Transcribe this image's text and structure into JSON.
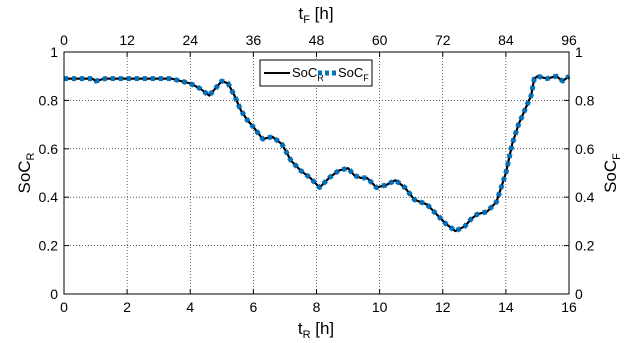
{
  "chart_data": {
    "type": "line",
    "xlabel_bottom": {
      "main": "t",
      "sub": "R",
      "unit": " [h]"
    },
    "xlabel_top": {
      "main": "t",
      "sub": "F",
      "unit": " [h]"
    },
    "ylabel_left": {
      "main": "SoC",
      "sub": "R"
    },
    "ylabel_right": {
      "main": "SoC",
      "sub": "F"
    },
    "xlim_bottom": [
      0,
      16
    ],
    "xticks_bottom": [
      0,
      2,
      4,
      6,
      8,
      10,
      12,
      14,
      16
    ],
    "xlim_top": [
      0,
      96
    ],
    "xticks_top": [
      0,
      12,
      24,
      36,
      48,
      60,
      72,
      84,
      96
    ],
    "ylim": [
      0,
      1
    ],
    "yticks": [
      0,
      0.2,
      0.4,
      0.6,
      0.8,
      1
    ],
    "ytick_labels": [
      "0",
      "0.2",
      "0.4",
      "0.6",
      "0.8",
      "1"
    ],
    "grid": true,
    "legend": {
      "placement": "top-center",
      "entries": [
        {
          "main": "SoC",
          "sub": "R"
        },
        {
          "main": "SoC",
          "sub": "F"
        }
      ]
    },
    "colors": {
      "soc_r": "#000000",
      "soc_f": "#0072BD"
    },
    "series": [
      {
        "name": "SoC_R",
        "style": "solid",
        "x_axis": "bottom",
        "x": [
          0,
          0.3,
          0.6,
          0.9,
          1.0,
          1.3,
          1.6,
          1.9,
          2.2,
          2.5,
          2.8,
          3.1,
          3.4,
          3.7,
          4.0,
          4.3,
          4.6,
          4.8,
          5.0,
          5.2,
          5.4,
          5.6,
          5.8,
          6.0,
          6.3,
          6.6,
          6.9,
          7.2,
          7.5,
          7.8,
          8.1,
          8.4,
          8.7,
          9.0,
          9.2,
          9.4,
          9.6,
          9.9,
          10.2,
          10.5,
          10.8,
          11.1,
          11.3,
          11.5,
          11.8,
          12.1,
          12.4,
          12.7,
          12.9,
          13.1,
          13.4,
          13.7,
          14.0,
          14.2,
          14.4,
          14.6,
          14.8,
          14.9,
          15.0,
          15.3,
          15.6,
          15.8,
          16.0
        ],
        "y": [
          0.89,
          0.89,
          0.89,
          0.89,
          0.88,
          0.89,
          0.89,
          0.89,
          0.89,
          0.89,
          0.89,
          0.89,
          0.89,
          0.88,
          0.87,
          0.85,
          0.82,
          0.85,
          0.88,
          0.87,
          0.82,
          0.76,
          0.72,
          0.69,
          0.64,
          0.65,
          0.62,
          0.55,
          0.51,
          0.48,
          0.44,
          0.48,
          0.51,
          0.52,
          0.49,
          0.48,
          0.48,
          0.44,
          0.45,
          0.47,
          0.44,
          0.39,
          0.38,
          0.37,
          0.33,
          0.29,
          0.26,
          0.28,
          0.31,
          0.33,
          0.34,
          0.38,
          0.5,
          0.62,
          0.7,
          0.76,
          0.82,
          0.89,
          0.9,
          0.89,
          0.9,
          0.88,
          0.9
        ]
      },
      {
        "name": "SoC_F",
        "style": "dashed",
        "x_axis": "bottom",
        "x": [
          0,
          0.3,
          0.6,
          0.9,
          1.0,
          1.3,
          1.6,
          1.9,
          2.2,
          2.5,
          2.8,
          3.1,
          3.4,
          3.7,
          4.0,
          4.3,
          4.6,
          4.8,
          5.0,
          5.2,
          5.4,
          5.6,
          5.8,
          6.0,
          6.3,
          6.6,
          6.9,
          7.2,
          7.5,
          7.8,
          8.1,
          8.4,
          8.7,
          9.0,
          9.2,
          9.4,
          9.6,
          9.9,
          10.2,
          10.5,
          10.8,
          11.1,
          11.3,
          11.5,
          11.8,
          12.1,
          12.4,
          12.7,
          12.9,
          13.1,
          13.4,
          13.7,
          14.0,
          14.2,
          14.4,
          14.6,
          14.8,
          14.9,
          15.0,
          15.3,
          15.6,
          15.8,
          16.0
        ],
        "y": [
          0.89,
          0.89,
          0.89,
          0.89,
          0.88,
          0.89,
          0.89,
          0.89,
          0.89,
          0.89,
          0.89,
          0.89,
          0.89,
          0.88,
          0.87,
          0.85,
          0.82,
          0.85,
          0.88,
          0.87,
          0.82,
          0.76,
          0.72,
          0.69,
          0.64,
          0.65,
          0.62,
          0.55,
          0.51,
          0.48,
          0.44,
          0.48,
          0.51,
          0.52,
          0.49,
          0.48,
          0.48,
          0.44,
          0.45,
          0.47,
          0.44,
          0.39,
          0.38,
          0.37,
          0.33,
          0.29,
          0.26,
          0.28,
          0.31,
          0.33,
          0.34,
          0.38,
          0.5,
          0.62,
          0.7,
          0.76,
          0.82,
          0.89,
          0.9,
          0.89,
          0.9,
          0.88,
          0.9
        ]
      }
    ]
  }
}
